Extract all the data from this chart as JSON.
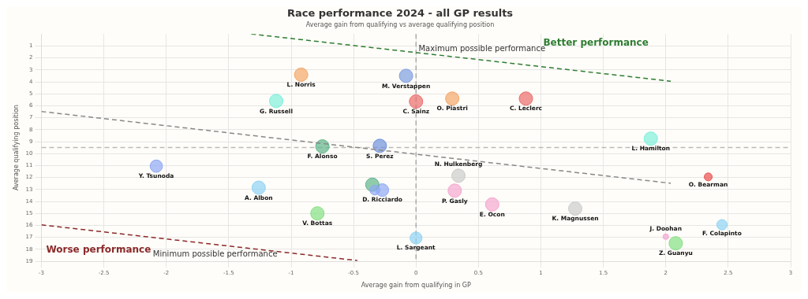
{
  "chart_data": {
    "type": "bubble",
    "title": "Race performance 2024 - all GP results",
    "subtitle": "Average gain from qualifying vs average qualifying position",
    "xlabel": "Average gain from qualifying in GP",
    "ylabel": "Average qualifying position",
    "xlim": [
      -3,
      3
    ],
    "xticks": [
      -3,
      -2.5,
      -2,
      -1.5,
      -1,
      -0.5,
      0,
      0.5,
      1,
      1.5,
      2,
      2.5,
      3
    ],
    "ylim": [
      19,
      0
    ],
    "yticks": [
      1,
      2,
      3,
      4,
      5,
      6,
      7,
      8,
      9,
      10,
      11,
      12,
      13,
      14,
      15,
      16,
      17,
      18,
      19
    ],
    "grid": true,
    "legend": false,
    "ref_lines": [
      {
        "axis": "x",
        "value": 0,
        "color": "#aaaaaa",
        "line_style": "dashed"
      },
      {
        "axis": "y",
        "value": 9.5,
        "color": "#bbbbbb",
        "line_style": "dashed"
      }
    ],
    "annotations": [
      "Better performance",
      "Worse performance"
    ],
    "series": [
      {
        "type": "line",
        "name": "Maximum possible performance",
        "line_style": "dashed",
        "color": "#2e7d32",
        "x": [
          -1.32,
          2.04
        ],
        "values": [
          0,
          3.95
        ]
      },
      {
        "type": "line",
        "name": "Minimum possible performance",
        "line_style": "dashed",
        "color": "#8b2a2a",
        "x": [
          -3,
          -0.47
        ],
        "values": [
          15.96,
          18.94
        ]
      },
      {
        "type": "line",
        "line_style": "dashed",
        "color": "#888888",
        "x": [
          -3,
          2.04
        ],
        "values": [
          6.48,
          12.48
        ]
      },
      {
        "name": "L. Norris",
        "color": "#f5a66a",
        "x": [
          -0.92
        ],
        "values": [
          3.4
        ],
        "sizes": [
          1
        ]
      },
      {
        "name": "M. Verstappen",
        "color": "#7d9ee0",
        "x": [
          -0.08
        ],
        "values": [
          3.5
        ],
        "sizes": [
          1
        ]
      },
      {
        "name": "G. Russell",
        "color": "#7ff0dc",
        "x": [
          -1.12
        ],
        "values": [
          5.6
        ],
        "sizes": [
          1
        ]
      },
      {
        "name": "C. Sainz",
        "color": "#eb6b6b",
        "x": [
          0
        ],
        "values": [
          5.65
        ],
        "sizes": [
          1
        ]
      },
      {
        "name": "O. Piastri",
        "color": "#f5a66a",
        "x": [
          0.29
        ],
        "values": [
          5.4
        ],
        "sizes": [
          1
        ]
      },
      {
        "name": "C. Leclerc",
        "color": "#eb6b6b",
        "x": [
          0.88
        ],
        "values": [
          5.4
        ],
        "sizes": [
          1
        ]
      },
      {
        "name": "L. Hamilton",
        "color": "#7ff0dc",
        "x": [
          1.88
        ],
        "values": [
          8.75
        ],
        "sizes": [
          1
        ]
      },
      {
        "name": "F. Alonso",
        "color": "#5fb58a",
        "x": [
          -0.75
        ],
        "values": [
          9.4
        ],
        "sizes": [
          1
        ]
      },
      {
        "name": "S. Perez",
        "color": "#6f92dc",
        "x": [
          -0.29
        ],
        "values": [
          9.35
        ],
        "sizes": [
          1
        ]
      },
      {
        "name": "Y. Tsunoda",
        "color": "#8fa8f5",
        "x": [
          -2.08
        ],
        "values": [
          11.05
        ],
        "sizes": [
          0.85
        ]
      },
      {
        "name": "A. Albon",
        "color": "#8fd3f5",
        "x": [
          -1.26
        ],
        "values": [
          12.85
        ],
        "sizes": [
          1
        ]
      },
      {
        "color": "#8fa8f5",
        "x": [
          -0.33
        ],
        "values": [
          13.05
        ],
        "sizes": [
          0.55
        ]
      },
      {
        "color": "#5fb58a",
        "x": [
          -0.35
        ],
        "values": [
          12.6
        ],
        "sizes": [
          1
        ]
      },
      {
        "name": "D. Ricciardo",
        "color": "#8fa8f5",
        "x": [
          -0.27
        ],
        "values": [
          13.05
        ],
        "sizes": [
          0.9
        ]
      },
      {
        "name": "V. Bottas",
        "color": "#85e085",
        "x": [
          -0.79
        ],
        "values": [
          15
        ],
        "sizes": [
          1
        ]
      },
      {
        "name": "L. Sargeant",
        "color": "#8fd3f5",
        "x": [
          0
        ],
        "values": [
          17.06
        ],
        "sizes": [
          0.8
        ]
      },
      {
        "name": "N. Hulkenberg",
        "color": "#cccccc",
        "x": [
          0.34
        ],
        "values": [
          11.85
        ],
        "sizes": [
          1
        ]
      },
      {
        "name": "P. Gasly",
        "color": "#f5a6d0",
        "x": [
          0.31
        ],
        "values": [
          13.1
        ],
        "sizes": [
          1
        ]
      },
      {
        "name": "E. Ocon",
        "color": "#f5a6d0",
        "x": [
          0.61
        ],
        "values": [
          14.25
        ],
        "sizes": [
          1
        ]
      },
      {
        "name": "K. Magnussen",
        "color": "#cccccc",
        "x": [
          1.275
        ],
        "values": [
          14.6
        ],
        "sizes": [
          1
        ]
      },
      {
        "name": "O. Bearman",
        "color": "#eb5050",
        "x": [
          2.34
        ],
        "values": [
          11.95
        ],
        "sizes": [
          0.35
        ]
      },
      {
        "name": "F. Colapinto",
        "color": "#8fd3f5",
        "x": [
          2.45
        ],
        "values": [
          15.95
        ],
        "sizes": [
          0.6
        ]
      },
      {
        "name": "J. Doohan",
        "color": "#f5a6d0",
        "x": [
          2
        ],
        "values": [
          16.95
        ],
        "sizes": [
          0.17
        ]
      },
      {
        "name": "Z. Guanyu",
        "color": "#85e085",
        "x": [
          2.08
        ],
        "values": [
          17.5
        ],
        "sizes": [
          1
        ]
      }
    ]
  }
}
